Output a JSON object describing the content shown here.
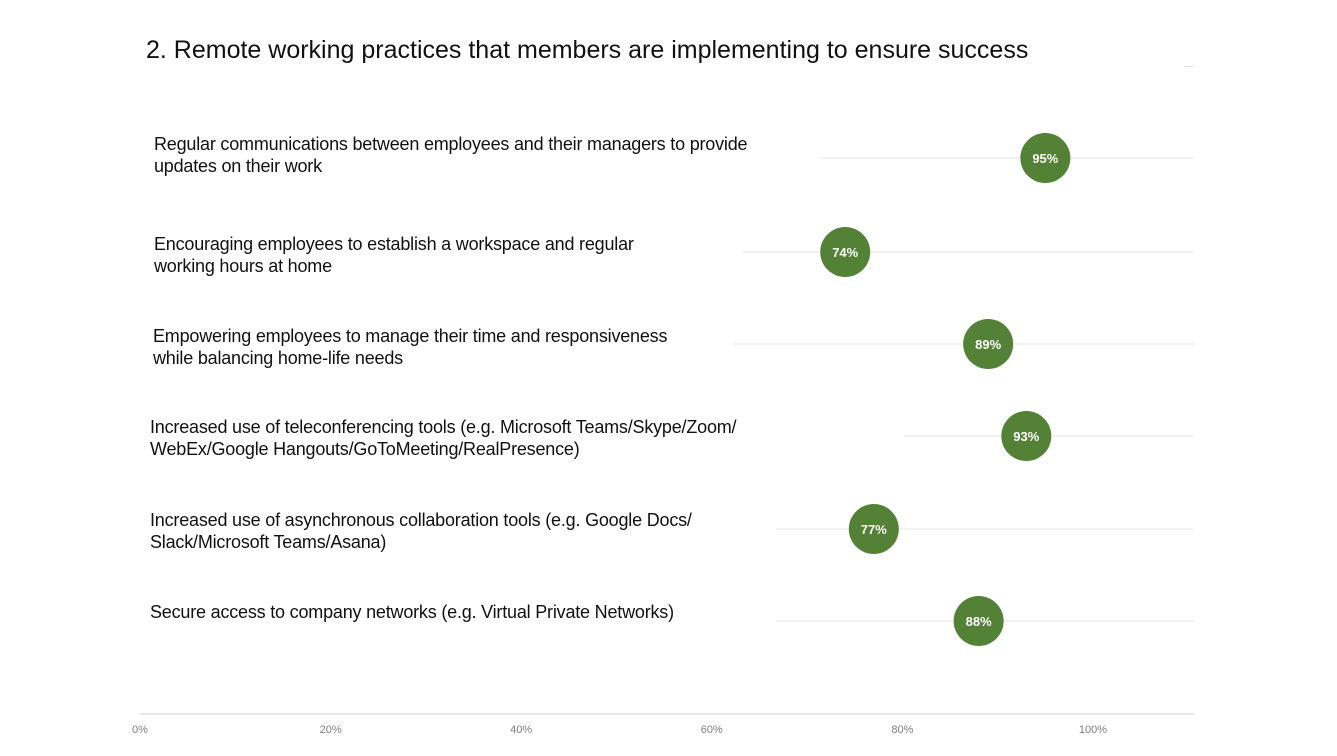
{
  "title": "2. Remote working practices that members are implementing to ensure success",
  "chart_data": {
    "type": "scatter",
    "categories": [
      "Regular communications between employees and their managers to provide updates on their work",
      "Encouraging employees to establish a workspace and regular working hours at home",
      "Empowering employees to manage their time and responsiveness while balancing home-life needs",
      "Increased use of teleconferencing tools (e.g. Microsoft Teams/Skype/Zoom/ WebEx/Google Hangouts/GoToMeeting/RealPresence)",
      "Increased use of asynchronous collaboration tools (e.g. Google Docs/ Slack/Microsoft Teams/Asana)",
      "Secure access to company networks (e.g. Virtual Private Networks)"
    ],
    "label_lines": [
      [
        "Regular communications between employees and their managers to provide",
        "updates on their work"
      ],
      [
        "Encouraging employees to establish a workspace and regular",
        "working hours at home"
      ],
      [
        "Empowering employees to manage their time and responsiveness",
        "while balancing home-life needs"
      ],
      [
        "Increased use of teleconferencing tools (e.g. Microsoft Teams/Skype/Zoom/",
        "WebEx/Google Hangouts/GoToMeeting/RealPresence)"
      ],
      [
        "Increased use of asynchronous collaboration tools (e.g. Google Docs/",
        "Slack/Microsoft Teams/Asana)"
      ],
      [
        "Secure access to company networks (e.g. Virtual Private Networks)"
      ]
    ],
    "values": [
      95,
      74,
      89,
      93,
      77,
      88
    ],
    "data_labels": [
      "95%",
      "74%",
      "89%",
      "93%",
      "77%",
      "88%"
    ],
    "xlim": [
      0,
      110
    ],
    "x_ticks": [
      0,
      20,
      40,
      60,
      80,
      100
    ],
    "x_tick_labels": [
      "0%",
      "20%",
      "40%",
      "60%",
      "80%",
      "100%"
    ],
    "marker_color": "#538135",
    "grid": true
  }
}
